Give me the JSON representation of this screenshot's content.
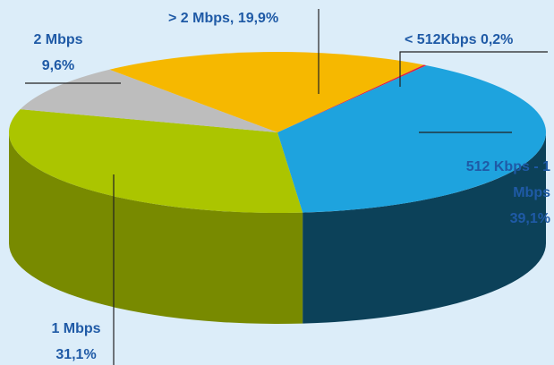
{
  "chart_data": {
    "type": "pie3d",
    "categories": [
      "< 512Kbps",
      "512 Kbps - 1 Mbps",
      "1 Mbps",
      "2 Mbps",
      "> 2 Mbps,"
    ],
    "values": [
      0.2,
      39.1,
      31.1,
      9.6,
      19.9
    ],
    "value_labels": [
      "0,2%",
      "39,1%",
      "31,1%",
      "9,6%",
      "19,9%"
    ],
    "colors": [
      "#e2203c",
      "#1ea3de",
      "#abc500",
      "#bdbdbd",
      "#f6b800"
    ]
  }
}
